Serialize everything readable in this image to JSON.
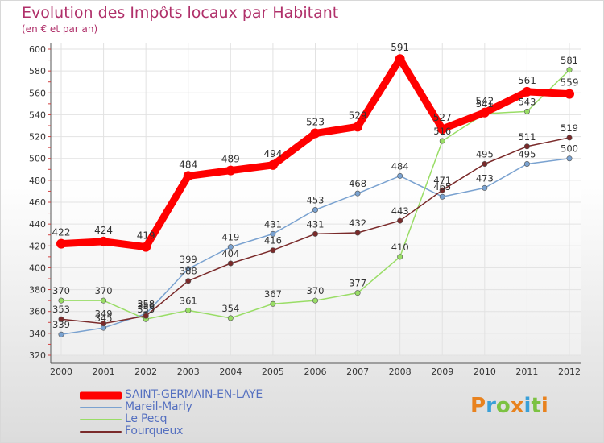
{
  "header": {
    "title": "Evolution des Impôts locaux par Habitant",
    "subtitle": "(en € et par an)"
  },
  "chart_data": {
    "type": "line",
    "title": "Evolution des Impôts locaux par Habitant",
    "subtitle": "(en € et par an)",
    "xlabel": "",
    "ylabel": "",
    "ylim": [
      320,
      600
    ],
    "y_ticks": [
      320,
      340,
      360,
      380,
      400,
      420,
      440,
      460,
      480,
      500,
      520,
      540,
      560,
      580,
      600
    ],
    "grid": true,
    "legend_position": "bottom-left",
    "x": [
      "2000",
      "2001",
      "2002",
      "2003",
      "2004",
      "2005",
      "2006",
      "2007",
      "2008",
      "2009",
      "2010",
      "2011",
      "2012"
    ],
    "series": [
      {
        "name": "SAINT-GERMAIN-EN-LAYE",
        "color": "#ff0000",
        "values": [
          422,
          424,
          419,
          484,
          489,
          494,
          523,
          529,
          591,
          527,
          542,
          561,
          559
        ]
      },
      {
        "name": "Mareil-Marly",
        "color": "#7aa2d0",
        "values": [
          339,
          345,
          358,
          399,
          419,
          431,
          453,
          468,
          484,
          465,
          473,
          495,
          500
        ]
      },
      {
        "name": "Le Pecq",
        "color": "#99dd66",
        "values": [
          370,
          370,
          353,
          361,
          354,
          367,
          370,
          377,
          410,
          516,
          541,
          543,
          581
        ]
      },
      {
        "name": "Fourqueux",
        "color": "#7a2a2a",
        "values": [
          353,
          349,
          356,
          388,
          404,
          416,
          431,
          432,
          443,
          471,
          495,
          511,
          519
        ]
      }
    ]
  },
  "legend": {
    "items": [
      {
        "label": "SAINT-GERMAIN-EN-LAYE",
        "color": "#ff0000"
      },
      {
        "label": "Mareil-Marly",
        "color": "#7aa2d0"
      },
      {
        "label": "Le Pecq",
        "color": "#99dd66"
      },
      {
        "label": "Fourqueux",
        "color": "#7a2a2a"
      }
    ]
  },
  "logo": {
    "letters": [
      "P",
      "r",
      "o",
      "x",
      "i",
      "t",
      "i"
    ],
    "colors": [
      "#e8821e",
      "#3aa0d8",
      "#7cc242",
      "#e8821e",
      "#3aa0d8",
      "#7cc242",
      "#e8821e"
    ]
  }
}
